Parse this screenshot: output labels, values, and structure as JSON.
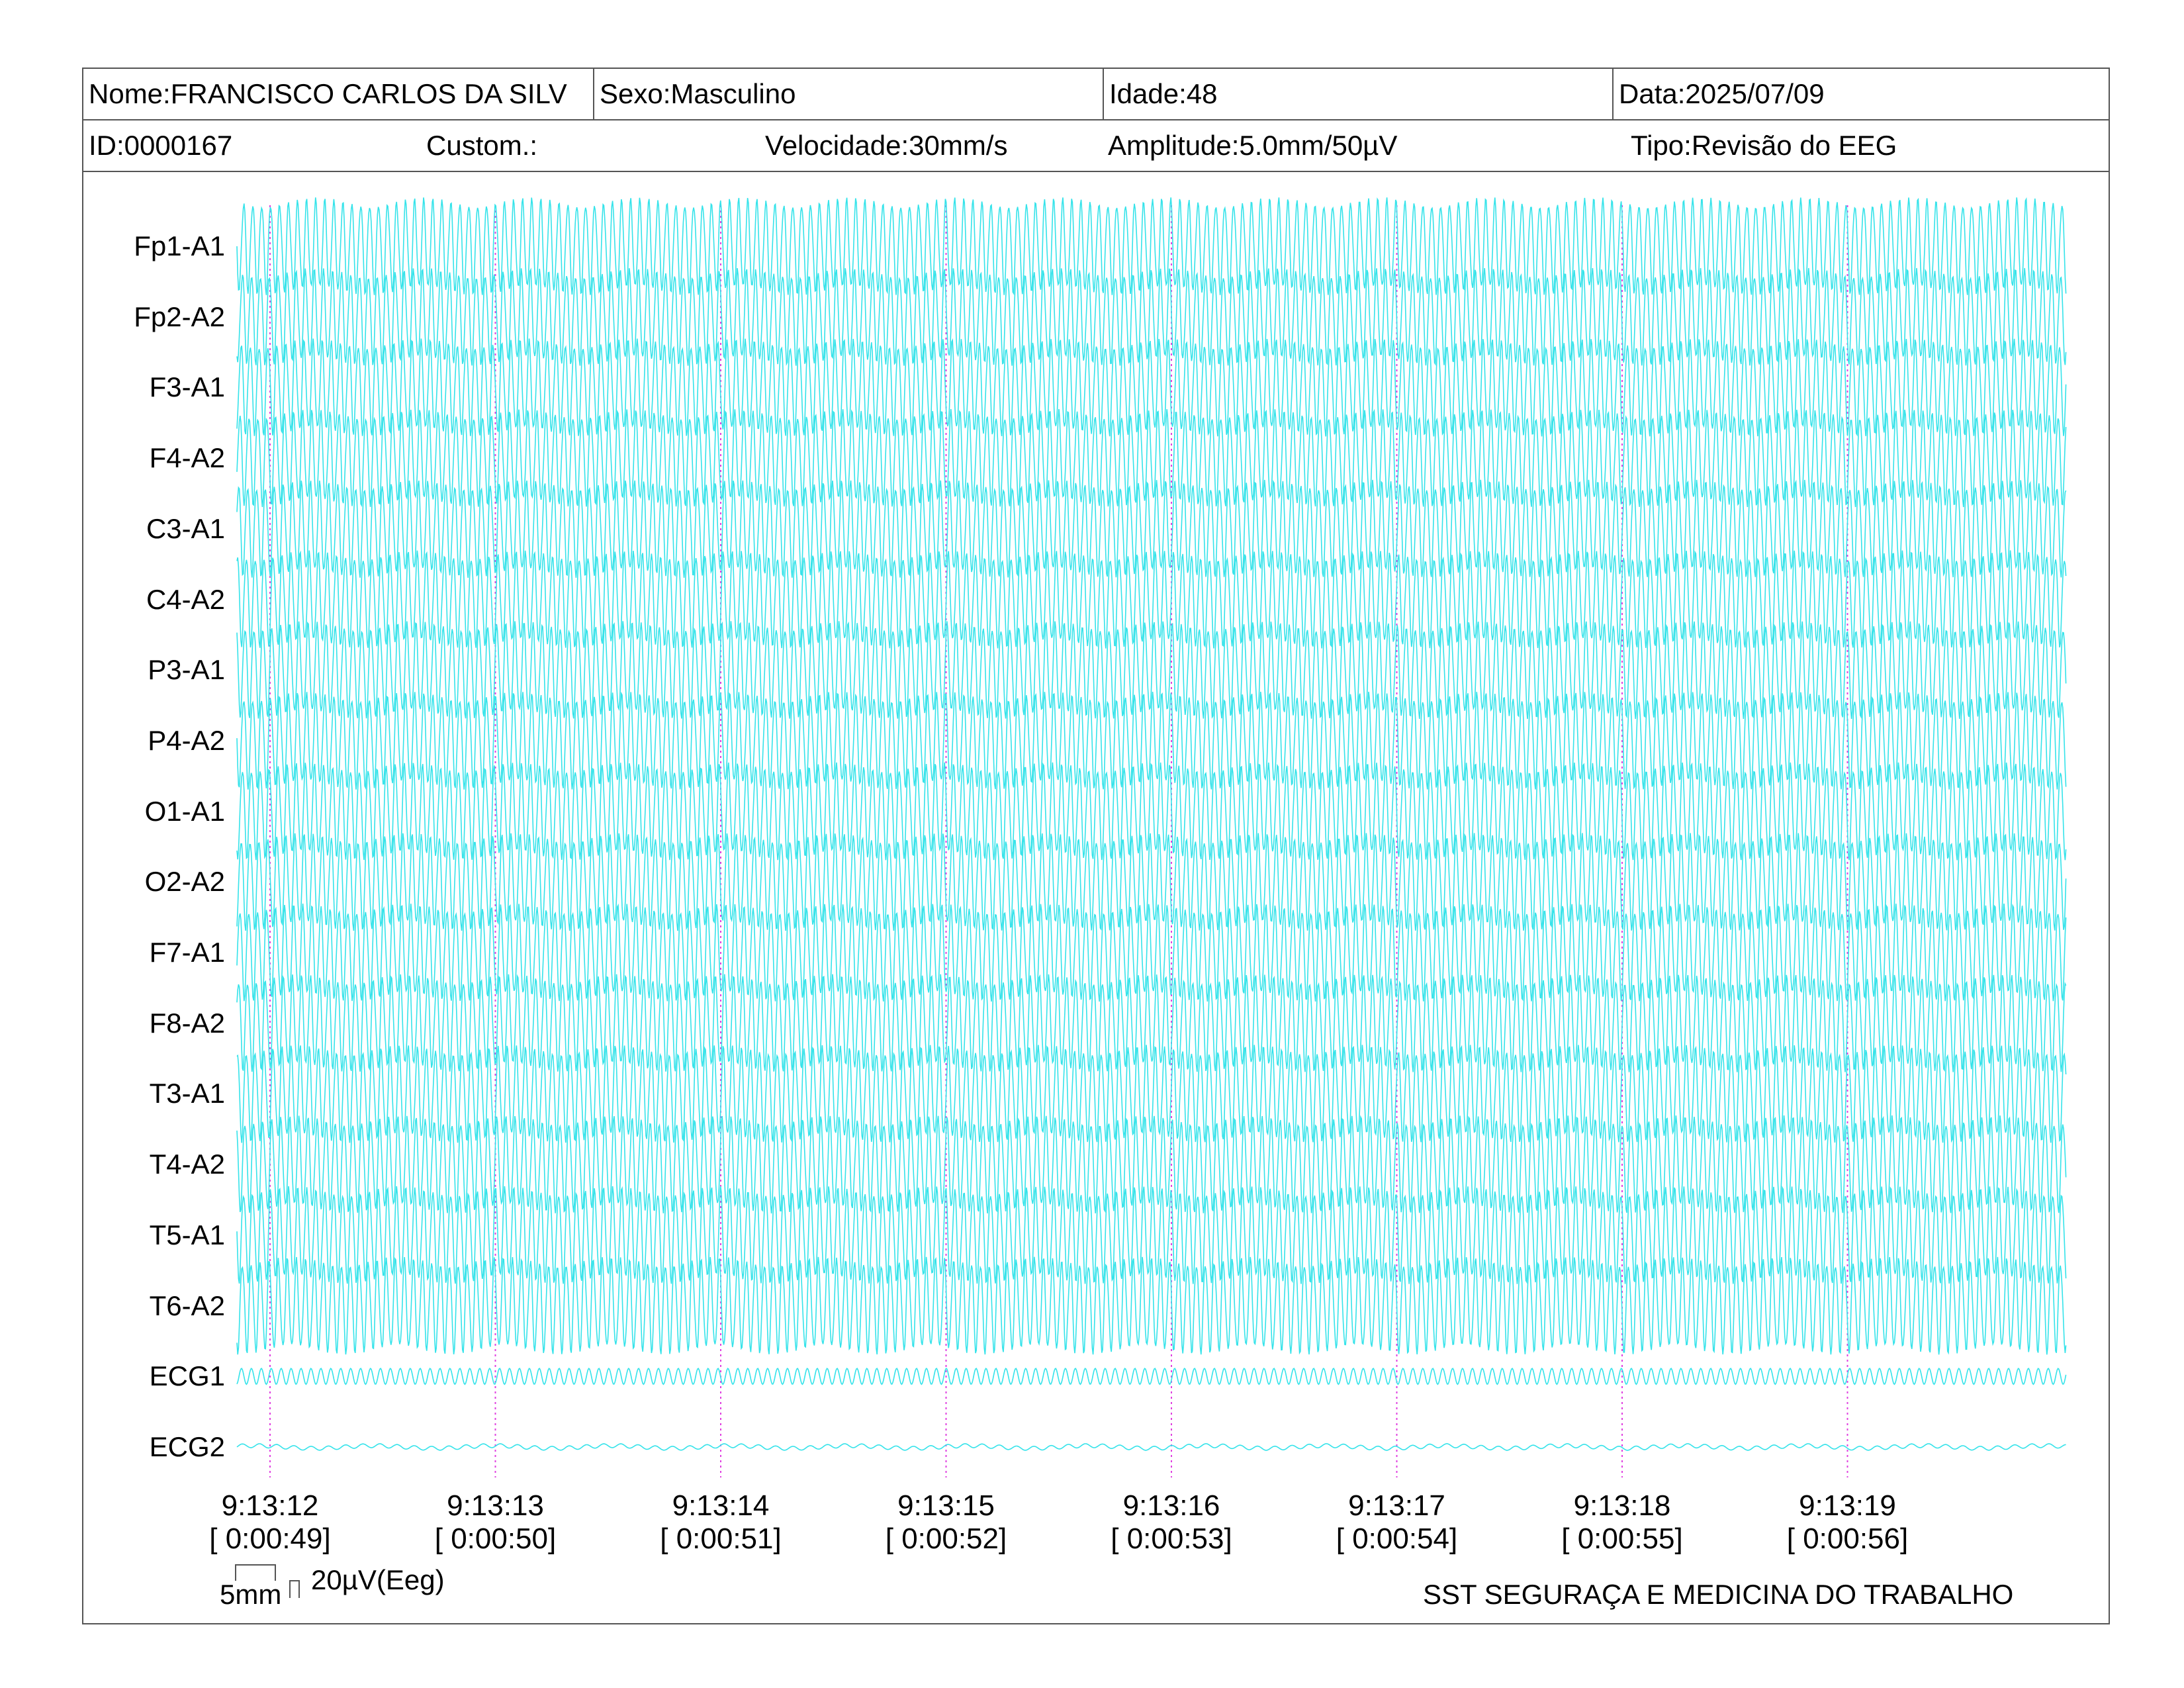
{
  "header": {
    "name": "Nome:FRANCISCO CARLOS DA SILV",
    "sex": "Sexo:Masculino",
    "age": "Idade:48",
    "date": "Data:2025/07/09",
    "id": "ID:0000167",
    "custom": "Custom.:",
    "speed": "Velocidade:30mm/s",
    "amplitude": "Amplitude:5.0mm/50µV",
    "type": "Tipo:Revisão do EEG"
  },
  "channels": [
    "Fp1-A1",
    "Fp2-A2",
    "F3-A1",
    "F4-A2",
    "C3-A1",
    "C4-A2",
    "P3-A1",
    "P4-A2",
    "O1-A1",
    "O2-A2",
    "F7-A1",
    "F8-A2",
    "T3-A1",
    "T4-A2",
    "T5-A1",
    "T6-A2",
    "ECG1",
    "ECG2"
  ],
  "time_marks": [
    {
      "clock": "9:13:12",
      "elapsed": "[ 0:00:49]"
    },
    {
      "clock": "9:13:13",
      "elapsed": "[ 0:00:50]"
    },
    {
      "clock": "9:13:14",
      "elapsed": "[ 0:00:51]"
    },
    {
      "clock": "9:13:15",
      "elapsed": "[ 0:00:52]"
    },
    {
      "clock": "9:13:16",
      "elapsed": "[ 0:00:53]"
    },
    {
      "clock": "9:13:17",
      "elapsed": "[ 0:00:54]"
    },
    {
      "clock": "9:13:18",
      "elapsed": "[ 0:00:55]"
    },
    {
      "clock": "9:13:19",
      "elapsed": "[ 0:00:56]"
    }
  ],
  "scale": {
    "time": "5mm",
    "amplitude": "20µV(Eeg)"
  },
  "footer": "SST SEGURAÇA E MEDICINA DO TRABALHO",
  "colors": {
    "trace": "#35e3ea",
    "second_marker": "#e040e0",
    "border": "#555555"
  }
}
